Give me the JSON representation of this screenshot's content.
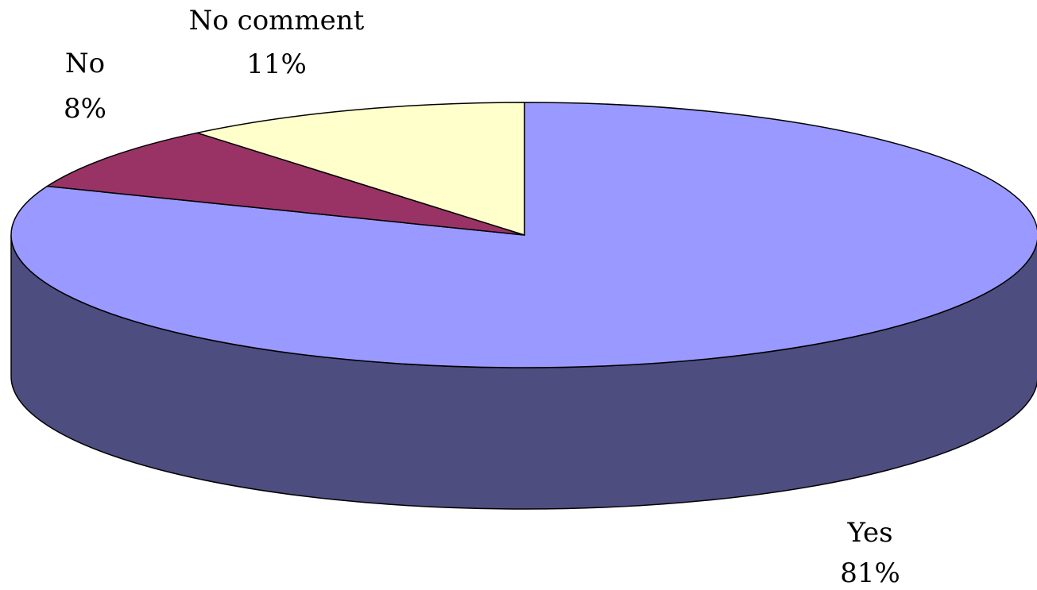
{
  "chart_data": {
    "type": "pie",
    "style": "3d",
    "title": "",
    "slices": [
      {
        "label": "Yes",
        "value": 81,
        "display": "81%",
        "color": "#9999ff",
        "side_color": "#4d4d80"
      },
      {
        "label": "No",
        "value": 8,
        "display": "8%",
        "color": "#993366",
        "side_color": "#4d1a33"
      },
      {
        "label": "No comment",
        "value": 11,
        "display": "11%",
        "color": "#ffffcc",
        "side_color": "#808066"
      }
    ],
    "legend": "none",
    "start_angle_deg": 90,
    "direction": "clockwise"
  }
}
